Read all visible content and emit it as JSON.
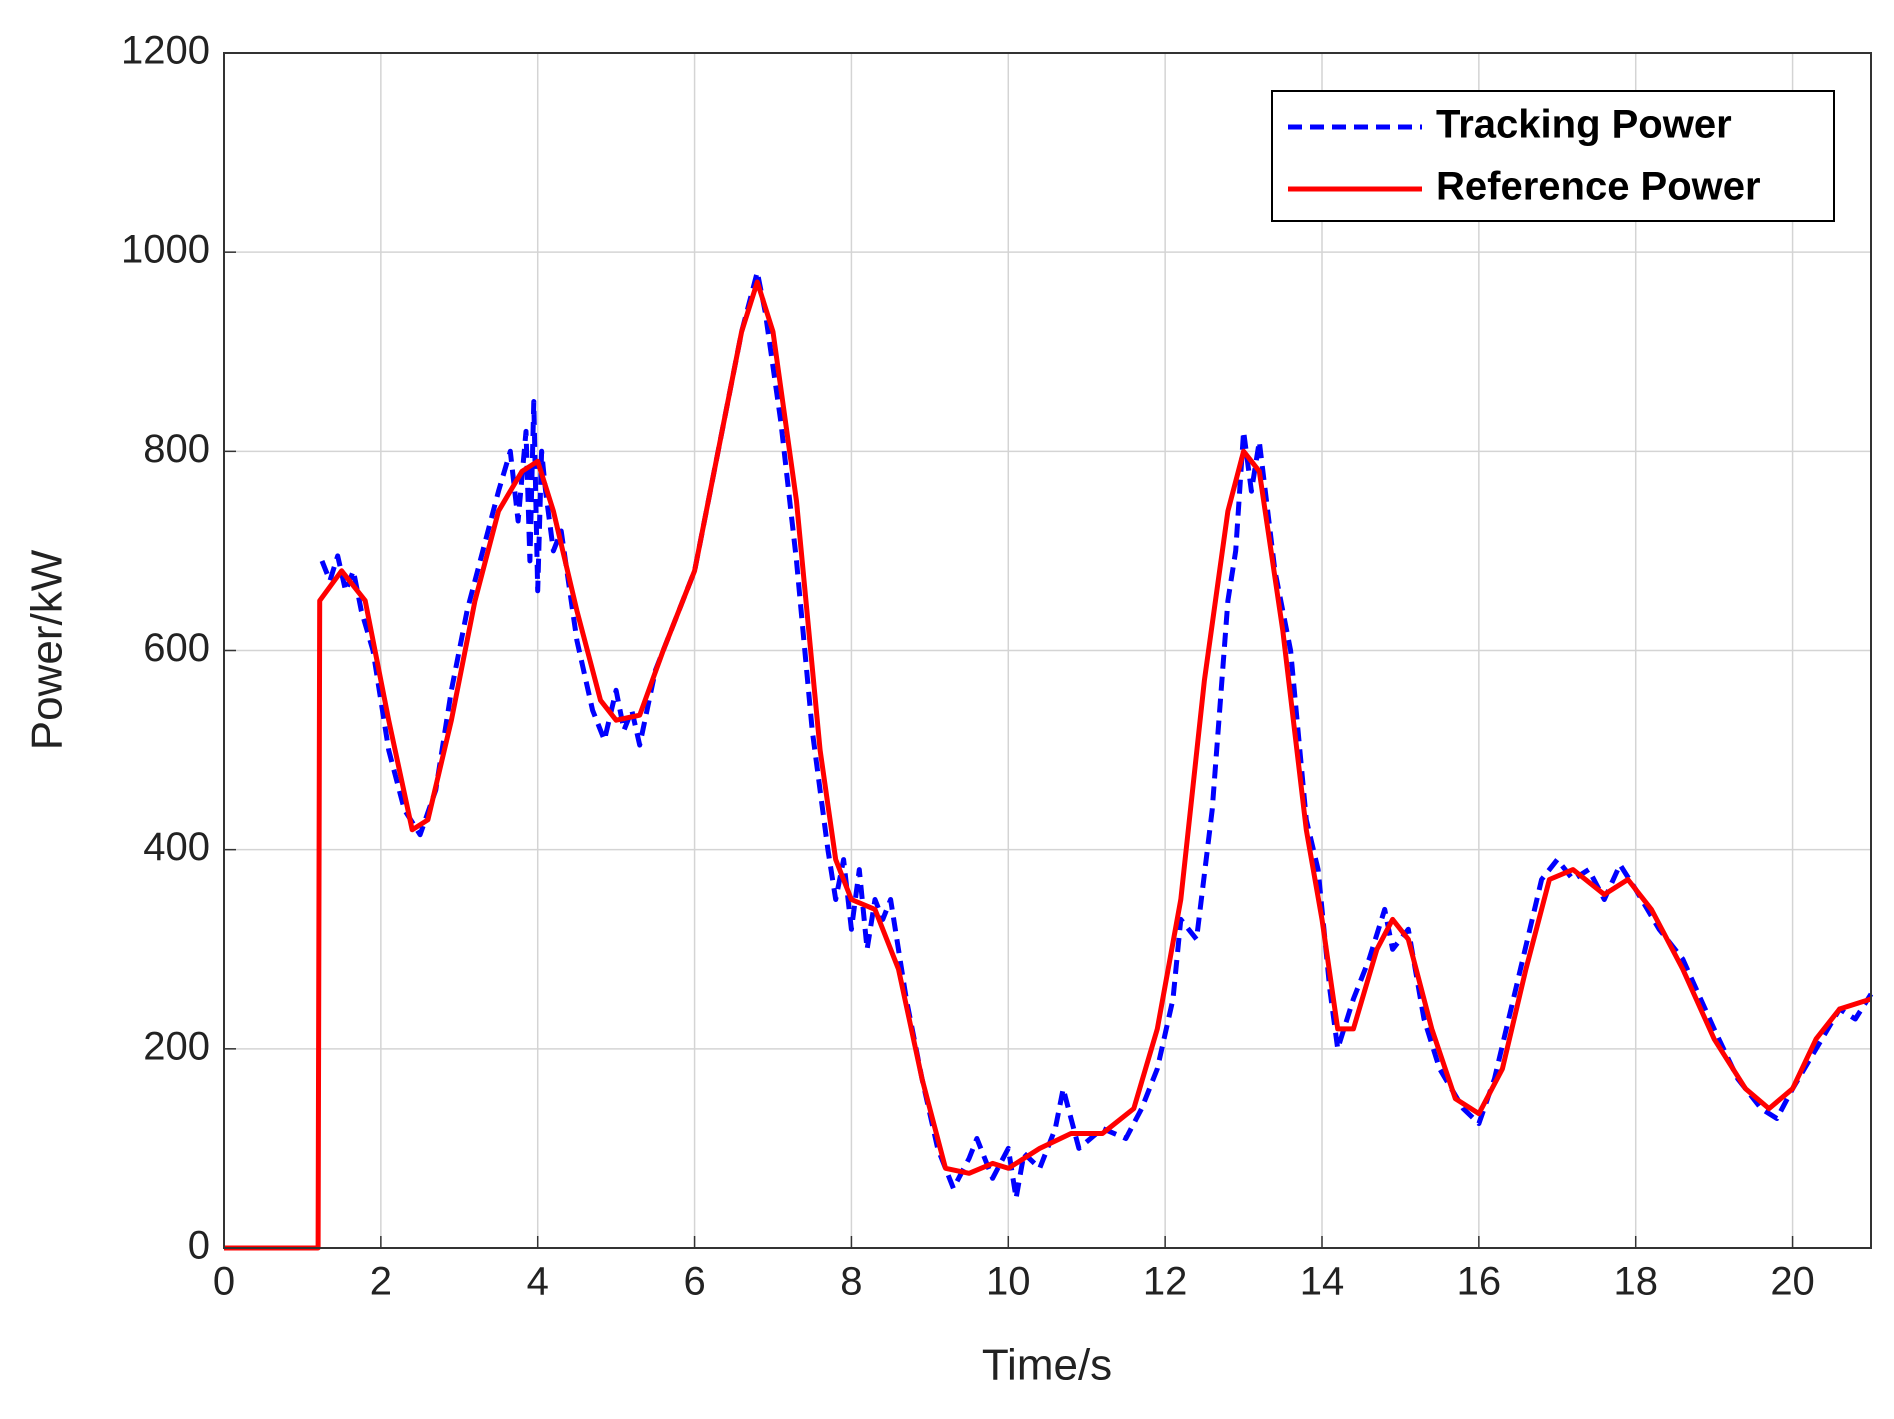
{
  "chart_data": {
    "type": "line",
    "xlabel": "Time/s",
    "ylabel": "Power/kW",
    "xlim": [
      0,
      21
    ],
    "xticks": [
      0,
      2,
      4,
      6,
      8,
      10,
      12,
      14,
      16,
      18,
      20
    ],
    "ylim": [
      0,
      1200
    ],
    "yticks": [
      0,
      200,
      400,
      600,
      800,
      1000,
      1200
    ],
    "grid": true,
    "legend": "upper right",
    "series": [
      {
        "name": "Tracking Power",
        "color": "#0000ff",
        "dash": true,
        "x": [
          1.25,
          1.35,
          1.45,
          1.55,
          1.65,
          1.75,
          1.9,
          2.1,
          2.3,
          2.5,
          2.7,
          2.9,
          3.1,
          3.3,
          3.5,
          3.65,
          3.75,
          3.85,
          3.9,
          3.95,
          4.0,
          4.05,
          4.1,
          4.2,
          4.3,
          4.5,
          4.7,
          4.85,
          5.0,
          5.1,
          5.2,
          5.3,
          5.5,
          5.8,
          6.0,
          6.3,
          6.6,
          6.8,
          6.9,
          7.1,
          7.3,
          7.5,
          7.7,
          7.8,
          7.9,
          8.0,
          8.1,
          8.2,
          8.3,
          8.4,
          8.5,
          8.7,
          8.9,
          9.1,
          9.3,
          9.5,
          9.6,
          9.8,
          10.0,
          10.1,
          10.2,
          10.4,
          10.6,
          10.7,
          10.9,
          11.2,
          11.5,
          11.7,
          11.9,
          12.1,
          12.2,
          12.4,
          12.6,
          12.8,
          12.9,
          13.0,
          13.1,
          13.2,
          13.4,
          13.6,
          13.8,
          13.95,
          14.1,
          14.2,
          14.4,
          14.6,
          14.8,
          14.9,
          15.1,
          15.3,
          15.5,
          15.8,
          16.0,
          16.2,
          16.5,
          16.8,
          17.0,
          17.2,
          17.4,
          17.6,
          17.8,
          18.0,
          18.3,
          18.6,
          19.0,
          19.3,
          19.6,
          19.8,
          20.0,
          20.3,
          20.6,
          20.8,
          21.0
        ],
        "values": [
          690,
          670,
          695,
          660,
          680,
          640,
          600,
          500,
          440,
          415,
          460,
          560,
          640,
          700,
          760,
          800,
          730,
          820,
          690,
          850,
          660,
          800,
          760,
          700,
          720,
          610,
          540,
          510,
          560,
          520,
          540,
          505,
          580,
          640,
          680,
          800,
          920,
          980,
          940,
          830,
          690,
          520,
          400,
          350,
          390,
          320,
          380,
          300,
          350,
          330,
          350,
          250,
          170,
          100,
          60,
          90,
          110,
          70,
          100,
          50,
          95,
          80,
          120,
          160,
          100,
          120,
          110,
          140,
          180,
          250,
          330,
          310,
          440,
          650,
          700,
          820,
          760,
          810,
          680,
          600,
          430,
          380,
          260,
          200,
          250,
          290,
          340,
          300,
          320,
          230,
          180,
          140,
          125,
          170,
          270,
          370,
          390,
          370,
          380,
          350,
          385,
          360,
          320,
          290,
          220,
          170,
          140,
          130,
          160,
          200,
          240,
          230,
          255
        ]
      },
      {
        "name": "Reference Power",
        "color": "#ff0000",
        "dash": false,
        "x": [
          0,
          1.2,
          1.22,
          1.5,
          1.8,
          2.1,
          2.4,
          2.6,
          2.9,
          3.2,
          3.5,
          3.8,
          4.0,
          4.2,
          4.5,
          4.8,
          5.0,
          5.3,
          5.6,
          6.0,
          6.3,
          6.6,
          6.8,
          7.0,
          7.3,
          7.6,
          7.8,
          8.0,
          8.3,
          8.6,
          8.9,
          9.2,
          9.5,
          9.8,
          10.0,
          10.4,
          10.8,
          11.2,
          11.6,
          11.9,
          12.2,
          12.5,
          12.8,
          13.0,
          13.2,
          13.5,
          13.8,
          14.0,
          14.2,
          14.4,
          14.7,
          14.9,
          15.1,
          15.4,
          15.7,
          16.0,
          16.3,
          16.6,
          16.9,
          17.2,
          17.6,
          17.9,
          18.2,
          18.6,
          19.0,
          19.4,
          19.7,
          20.0,
          20.3,
          20.6,
          21.0
        ],
        "values": [
          0,
          0,
          650,
          680,
          650,
          530,
          420,
          430,
          530,
          650,
          740,
          780,
          790,
          740,
          640,
          550,
          530,
          535,
          600,
          680,
          800,
          920,
          970,
          920,
          750,
          500,
          390,
          350,
          340,
          280,
          170,
          80,
          75,
          85,
          80,
          100,
          115,
          115,
          140,
          220,
          350,
          570,
          740,
          800,
          780,
          620,
          420,
          330,
          220,
          220,
          300,
          330,
          310,
          220,
          150,
          135,
          180,
          280,
          370,
          380,
          355,
          370,
          340,
          280,
          210,
          160,
          140,
          160,
          210,
          240,
          250
        ]
      }
    ]
  }
}
